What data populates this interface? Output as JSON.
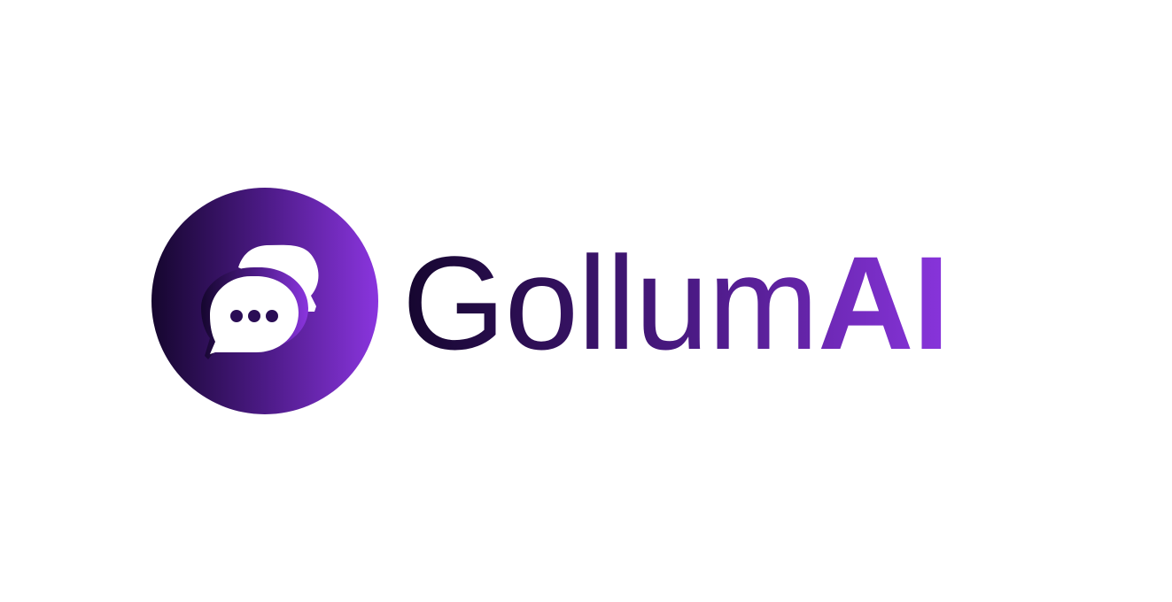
{
  "brand": {
    "name": "Gollum",
    "suffix": "AI",
    "icon": "chat-bubbles-icon"
  },
  "colors": {
    "background": "#ffffff",
    "gradient_start": "#15062e",
    "gradient_mid": "#4c1a86",
    "gradient_end": "#8a35de",
    "icon_fill": "#ffffff",
    "dots": "#2a0d55"
  }
}
